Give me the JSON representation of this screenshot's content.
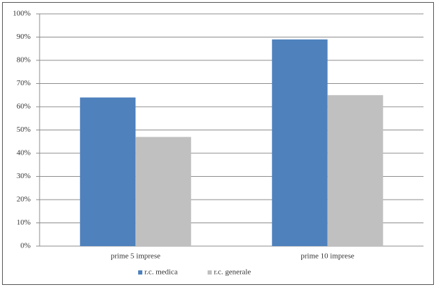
{
  "chart_data": {
    "type": "bar",
    "categories": [
      "prime 5 imprese",
      "prime 10 imprese"
    ],
    "series": [
      {
        "name": "r.c. medica",
        "color": "#4f81bd",
        "values": [
          64,
          89
        ]
      },
      {
        "name": "r.c. generale",
        "color": "#c0c0c0",
        "values": [
          47,
          65
        ]
      }
    ],
    "ylim": [
      0,
      100
    ],
    "yticks": [
      {
        "value": 0,
        "label": "0%"
      },
      {
        "value": 10,
        "label": "10%"
      },
      {
        "value": 20,
        "label": "20%"
      },
      {
        "value": 30,
        "label": "30%"
      },
      {
        "value": 40,
        "label": "40%"
      },
      {
        "value": 50,
        "label": "50%"
      },
      {
        "value": 60,
        "label": "60%"
      },
      {
        "value": 70,
        "label": "70%"
      },
      {
        "value": 80,
        "label": "80%"
      },
      {
        "value": 90,
        "label": "90%"
      },
      {
        "value": 100,
        "label": "100%"
      }
    ],
    "grid": true,
    "legend": "bottom"
  }
}
